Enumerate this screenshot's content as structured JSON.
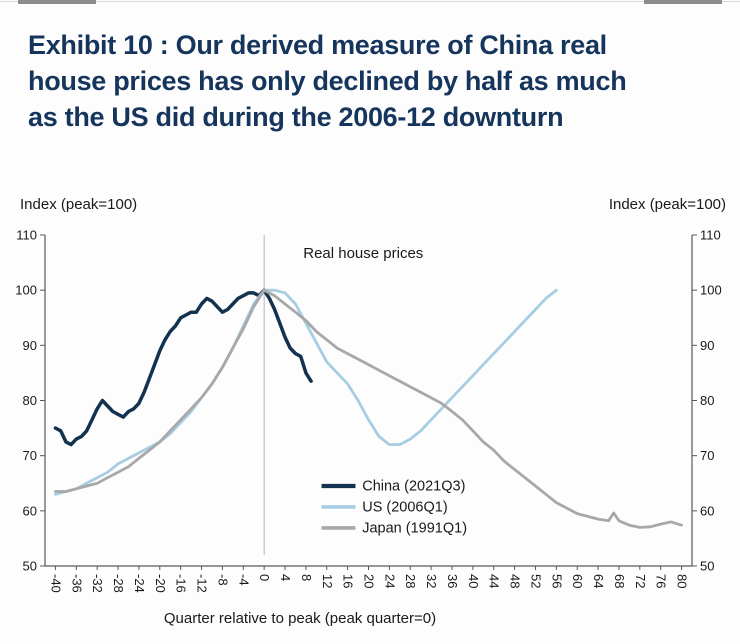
{
  "header": {
    "title_lines": [
      "Exhibit 10 : Our derived measure of China real",
      "house prices has only declined by half as much",
      "as the US did during the 2006-12 downturn"
    ],
    "title_color": "#16355c"
  },
  "chart": {
    "left_axis_title": "Index (peak=100)",
    "right_axis_title": "Index (peak=100)",
    "x_axis_title": "Quarter relative to peak (peak quarter=0)",
    "annotation": "Real house prices"
  },
  "chart_data": {
    "type": "line",
    "title": "Real house prices",
    "xlabel": "Quarter relative to peak (peak quarter=0)",
    "ylabel": "Index (peak=100)",
    "xlim": [
      -42,
      82
    ],
    "ylim": [
      50,
      110
    ],
    "x_ticks": [
      -40,
      -36,
      -32,
      -28,
      -24,
      -20,
      -16,
      -12,
      -8,
      -4,
      0,
      4,
      8,
      12,
      16,
      20,
      24,
      28,
      32,
      36,
      40,
      44,
      48,
      52,
      56,
      60,
      64,
      68,
      72,
      76,
      80
    ],
    "y_ticks": [
      50,
      60,
      70,
      80,
      90,
      100,
      110
    ],
    "reference_line_x": 0,
    "grid": false,
    "legend_position": "inside-bottom-center",
    "colors": {
      "reference_line": "#b3b3b3",
      "axis": "#595959"
    },
    "series": [
      {
        "name": "China (2021Q3)",
        "color": "#12324f",
        "width": 3.5,
        "points": [
          [
            -40,
            75
          ],
          [
            -39,
            74.5
          ],
          [
            -38,
            72.5
          ],
          [
            -37,
            72
          ],
          [
            -36,
            73
          ],
          [
            -35,
            73.5
          ],
          [
            -34,
            74.5
          ],
          [
            -33,
            76.5
          ],
          [
            -32,
            78.5
          ],
          [
            -31,
            80
          ],
          [
            -30,
            79
          ],
          [
            -29,
            78
          ],
          [
            -28,
            77.5
          ],
          [
            -27,
            77
          ],
          [
            -26,
            78
          ],
          [
            -25,
            78.5
          ],
          [
            -24,
            79.5
          ],
          [
            -23,
            81.5
          ],
          [
            -22,
            84
          ],
          [
            -21,
            86.5
          ],
          [
            -20,
            89
          ],
          [
            -19,
            91
          ],
          [
            -18,
            92.5
          ],
          [
            -17,
            93.5
          ],
          [
            -16,
            95
          ],
          [
            -15,
            95.5
          ],
          [
            -14,
            96
          ],
          [
            -13,
            96
          ],
          [
            -12,
            97.5
          ],
          [
            -11,
            98.5
          ],
          [
            -10,
            98
          ],
          [
            -9,
            97
          ],
          [
            -8,
            96
          ],
          [
            -7,
            96.5
          ],
          [
            -6,
            97.5
          ],
          [
            -5,
            98.5
          ],
          [
            -4,
            99
          ],
          [
            -3,
            99.5
          ],
          [
            -2,
            99.5
          ],
          [
            -1,
            99
          ],
          [
            0,
            100
          ],
          [
            1,
            98.5
          ],
          [
            2,
            96.5
          ],
          [
            3,
            94
          ],
          [
            4,
            91.5
          ],
          [
            5,
            89.5
          ],
          [
            6,
            88.5
          ],
          [
            7,
            88
          ],
          [
            8,
            85
          ],
          [
            9,
            83.5
          ]
        ]
      },
      {
        "name": "US (2006Q1)",
        "color": "#a7cde2",
        "width": 2.8,
        "points": [
          [
            -40,
            63
          ],
          [
            -38,
            63.5
          ],
          [
            -36,
            64
          ],
          [
            -34,
            65
          ],
          [
            -32,
            66
          ],
          [
            -30,
            67
          ],
          [
            -28,
            68.5
          ],
          [
            -26,
            69.5
          ],
          [
            -24,
            70.5
          ],
          [
            -22,
            71.5
          ],
          [
            -20,
            72.5
          ],
          [
            -18,
            74
          ],
          [
            -16,
            76
          ],
          [
            -14,
            78
          ],
          [
            -12,
            80.5
          ],
          [
            -10,
            83
          ],
          [
            -8,
            86
          ],
          [
            -6,
            89.5
          ],
          [
            -4,
            93.5
          ],
          [
            -2,
            97.5
          ],
          [
            0,
            100
          ],
          [
            2,
            100
          ],
          [
            4,
            99.5
          ],
          [
            6,
            97.5
          ],
          [
            8,
            94
          ],
          [
            10,
            90.5
          ],
          [
            12,
            87
          ],
          [
            14,
            85
          ],
          [
            16,
            83
          ],
          [
            18,
            80
          ],
          [
            20,
            76.5
          ],
          [
            22,
            73.5
          ],
          [
            24,
            72
          ],
          [
            26,
            72
          ],
          [
            28,
            73
          ],
          [
            30,
            74.5
          ],
          [
            32,
            76.5
          ],
          [
            34,
            78.5
          ],
          [
            36,
            80.5
          ],
          [
            38,
            82.5
          ],
          [
            40,
            84.5
          ],
          [
            42,
            86.5
          ],
          [
            44,
            88.5
          ],
          [
            46,
            90.5
          ],
          [
            48,
            92.5
          ],
          [
            50,
            94.5
          ],
          [
            52,
            96.5
          ],
          [
            54,
            98.5
          ],
          [
            56,
            100
          ]
        ]
      },
      {
        "name": "Japan (1991Q1)",
        "color": "#a8a8a8",
        "width": 2.8,
        "points": [
          [
            -40,
            63.5
          ],
          [
            -38,
            63.5
          ],
          [
            -36,
            64
          ],
          [
            -34,
            64.5
          ],
          [
            -32,
            65
          ],
          [
            -30,
            66
          ],
          [
            -28,
            67
          ],
          [
            -26,
            68
          ],
          [
            -24,
            69.5
          ],
          [
            -22,
            71
          ],
          [
            -20,
            72.5
          ],
          [
            -18,
            74.5
          ],
          [
            -16,
            76.5
          ],
          [
            -14,
            78.5
          ],
          [
            -12,
            80.5
          ],
          [
            -10,
            83
          ],
          [
            -8,
            86
          ],
          [
            -6,
            89.5
          ],
          [
            -4,
            93
          ],
          [
            -2,
            97
          ],
          [
            0,
            100
          ],
          [
            2,
            99
          ],
          [
            4,
            97.5
          ],
          [
            6,
            96
          ],
          [
            8,
            94.5
          ],
          [
            10,
            92.5
          ],
          [
            12,
            91
          ],
          [
            14,
            89.5
          ],
          [
            16,
            88.5
          ],
          [
            18,
            87.5
          ],
          [
            20,
            86.5
          ],
          [
            22,
            85.5
          ],
          [
            24,
            84.5
          ],
          [
            26,
            83.5
          ],
          [
            28,
            82.5
          ],
          [
            30,
            81.5
          ],
          [
            32,
            80.5
          ],
          [
            34,
            79.5
          ],
          [
            36,
            78
          ],
          [
            38,
            76.5
          ],
          [
            40,
            74.5
          ],
          [
            42,
            72.5
          ],
          [
            44,
            71
          ],
          [
            46,
            69
          ],
          [
            48,
            67.5
          ],
          [
            50,
            66
          ],
          [
            52,
            64.5
          ],
          [
            54,
            63
          ],
          [
            56,
            61.5
          ],
          [
            58,
            60.5
          ],
          [
            60,
            59.5
          ],
          [
            62,
            59
          ],
          [
            64,
            58.5
          ],
          [
            66,
            58.2
          ],
          [
            67,
            59.6
          ],
          [
            68,
            58.2
          ],
          [
            70,
            57.4
          ],
          [
            72,
            57
          ],
          [
            74,
            57.1
          ],
          [
            76,
            57.6
          ],
          [
            78,
            58
          ],
          [
            80,
            57.4
          ]
        ]
      }
    ]
  }
}
